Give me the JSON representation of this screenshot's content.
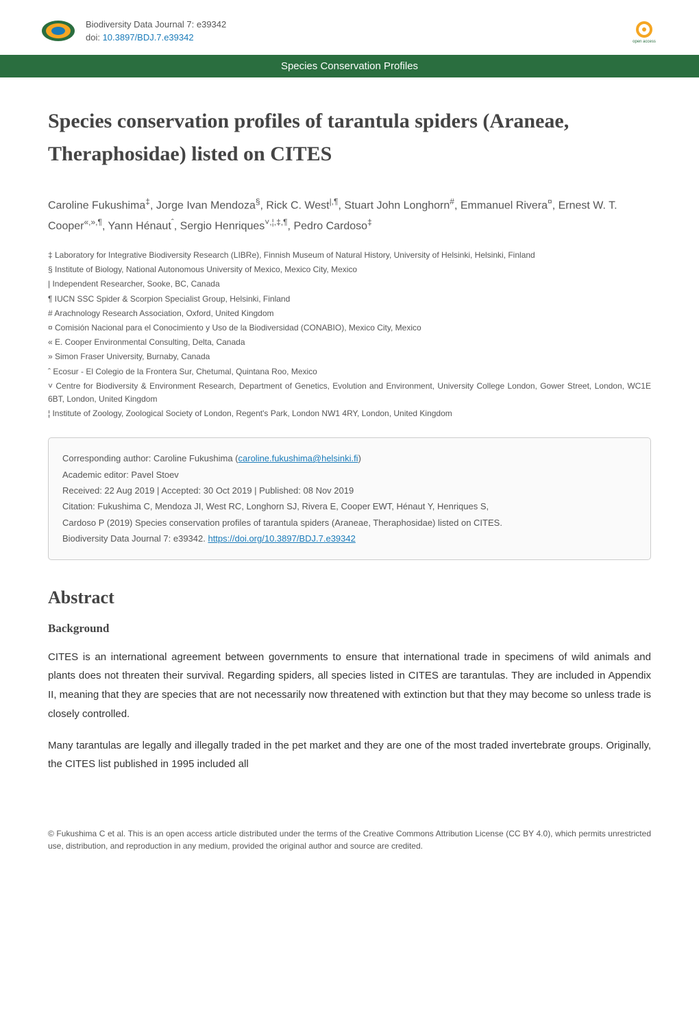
{
  "header": {
    "journal_name": "Biodiversity Data Journal 7: e39342",
    "doi_label": "doi: ",
    "doi": "10.3897/BDJ.7.e39342",
    "oa_label": "open access"
  },
  "category": "Species Conservation Profiles",
  "title": "Species conservation profiles of tarantula spiders (Araneae, Theraphosidae) listed on CITES",
  "authors_html": "Caroline Fukushima<sup>‡</sup>, Jorge Ivan Mendoza<sup>§</sup>, Rick C. West<sup>|,¶</sup>, Stuart John Longhorn<sup>#</sup>, Emmanuel Rivera<sup>¤</sup>, Ernest W. T. Cooper<sup>«,»,¶</sup>, Yann Hénaut<sup>ˆ</sup>, Sergio Henriques<sup>˅,¦,‡,¶</sup>, Pedro Cardoso<sup>‡</sup>",
  "affiliations": [
    "‡ Laboratory for Integrative Biodiversity Research (LIBRe), Finnish Museum of Natural History, University of Helsinki, Helsinki, Finland",
    "§ Institute of Biology, National Autonomous University of Mexico, Mexico City, Mexico",
    "| Independent Researcher, Sooke, BC, Canada",
    "¶ IUCN SSC Spider & Scorpion Specialist Group, Helsinki, Finland",
    "# Arachnology Research Association, Oxford, United Kingdom",
    "¤ Comisión Nacional para el Conocimiento y Uso de la Biodiversidad (CONABIO), Mexico City, Mexico",
    "« E. Cooper Environmental Consulting, Delta, Canada",
    "» Simon Fraser University, Burnaby, Canada",
    "ˆ Ecosur - El Colegio de la Frontera Sur, Chetumal, Quintana Roo, Mexico",
    "˅ Centre for Biodiversity & Environment Research, Department of Genetics, Evolution and Environment, University College London, Gower Street, London, WC1E 6BT, London, United Kingdom",
    "¦ Institute of Zoology, Zoological Society of London, Regent's Park, London NW1 4RY, London, United Kingdom"
  ],
  "metadata": {
    "corresponding": "Corresponding author: Caroline Fukushima (",
    "corresponding_email": "caroline.fukushima@helsinki.fi",
    "corresponding_close": ")",
    "editor": "Academic editor: Pavel Stoev",
    "dates": "Received: 22 Aug 2019 | Accepted: 30 Oct 2019 | Published: 08 Nov 2019",
    "citation_line1": "Citation: Fukushima C, Mendoza JI, West RC, Longhorn SJ, Rivera E, Cooper EWT, Hénaut Y, Henriques S,",
    "citation_line2": "Cardoso P (2019) Species conservation profiles of tarantula spiders (Araneae, Theraphosidae) listed on CITES.",
    "citation_line3_pre": "Biodiversity Data Journal 7: e39342. ",
    "citation_link": "https://doi.org/10.3897/BDJ.7.e39342"
  },
  "sections": {
    "abstract_heading": "Abstract",
    "background_heading": "Background",
    "paragraphs": [
      "CITES is an international agreement between governments to ensure that international trade in specimens of wild animals and plants does not threaten their survival. Regarding spiders, all species listed in CITES are tarantulas. They are included in Appendix II, meaning that they are species that are not necessarily now threatened with extinction but that they may become so unless trade is closely controlled.",
      "Many tarantulas are legally and illegally traded in the pet market and they are one of the most traded invertebrate groups. Originally, the CITES list published in 1995 included all"
    ]
  },
  "footer": "© Fukushima C et al. This is an open access article distributed under the terms of the Creative Commons Attribution License (CC BY 4.0), which permits unrestricted use, distribution, and reproduction in any medium, provided the original author and source are credited.",
  "colors": {
    "banner_bg": "#2a6e3f",
    "link": "#1a7bb9",
    "text": "#333",
    "text_muted": "#555",
    "box_bg": "#fafafa",
    "box_border": "#ccc"
  },
  "icons": {
    "journal_logo_colors": {
      "outer": "#2a6e3f",
      "mid": "#f5a623",
      "inner": "#1a7bb9"
    },
    "oa_colors": {
      "ring": "#f5a623",
      "text": "#2a6e3f"
    }
  }
}
